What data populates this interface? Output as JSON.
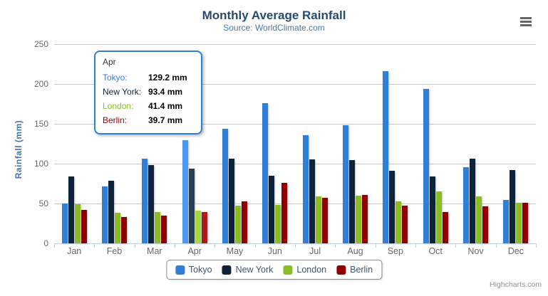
{
  "header": {
    "title": "Monthly Average Rainfall",
    "subtitle": "Source: WorldClimate.com"
  },
  "credits": "Highcharts.com",
  "chart_data": {
    "type": "bar",
    "title": "Monthly Average Rainfall",
    "subtitle": "Source: WorldClimate.com",
    "categories": [
      "Jan",
      "Feb",
      "Mar",
      "Apr",
      "May",
      "Jun",
      "Jul",
      "Aug",
      "Sep",
      "Oct",
      "Nov",
      "Dec"
    ],
    "series": [
      {
        "name": "Tokyo",
        "color": "#2f7ed8",
        "hover_color": "#4998f2",
        "values": [
          49.9,
          71.5,
          106.4,
          129.2,
          144.0,
          176.0,
          135.6,
          148.5,
          216.4,
          194.1,
          95.6,
          54.4
        ]
      },
      {
        "name": "New York",
        "color": "#0d233a",
        "hover_color": "#283e55",
        "values": [
          83.6,
          78.8,
          98.5,
          93.4,
          106.0,
          84.5,
          105.0,
          104.3,
          91.2,
          83.5,
          106.6,
          92.3
        ]
      },
      {
        "name": "London",
        "color": "#8bbc21",
        "hover_color": "#a6d73c",
        "values": [
          48.9,
          38.8,
          39.3,
          41.4,
          47.0,
          48.3,
          59.0,
          59.6,
          52.4,
          65.2,
          59.3,
          51.2
        ]
      },
      {
        "name": "Berlin",
        "color": "#910000",
        "hover_color": "#ac1b1b",
        "values": [
          42.4,
          33.2,
          34.5,
          39.7,
          52.6,
          75.5,
          57.4,
          60.4,
          47.6,
          39.1,
          46.8,
          51.1
        ]
      }
    ],
    "xlabel": "",
    "ylabel": "Rainfall (mm)",
    "ylim": [
      0,
      250
    ],
    "yticks": [
      0,
      50,
      100,
      150,
      200,
      250
    ],
    "grid": true,
    "legend_position": "bottom",
    "highlighted_category": "Apr",
    "highlighted_category_index": 3
  },
  "tooltip": {
    "header": "Apr",
    "border_color": "#2f7ed8",
    "rows": [
      {
        "name": "Tokyo:",
        "value": "129.2 mm",
        "color": "#2f7ed8"
      },
      {
        "name": "New York:",
        "value": "93.4 mm",
        "color": "#0d233a"
      },
      {
        "name": "London:",
        "value": "41.4 mm",
        "color": "#8bbc21"
      },
      {
        "name": "Berlin:",
        "value": "39.7 mm",
        "color": "#910000"
      }
    ]
  },
  "legend": {
    "items": [
      {
        "label": "Tokyo",
        "color": "#2f7ed8"
      },
      {
        "label": "New York",
        "color": "#0d233a"
      },
      {
        "label": "London",
        "color": "#8bbc21"
      },
      {
        "label": "Berlin",
        "color": "#910000"
      }
    ]
  }
}
